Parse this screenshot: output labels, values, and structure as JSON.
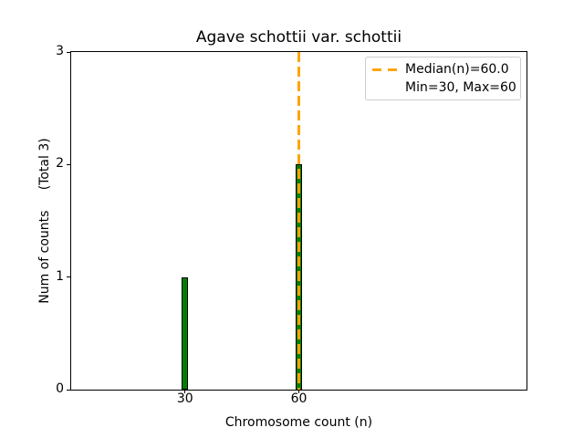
{
  "chart_data": {
    "type": "bar",
    "title": "Agave schottii var. schottii",
    "xlabel": "Chromosome count (n)",
    "ylabel": "Num of counts     (Total 3)",
    "categories": [
      30,
      60
    ],
    "values": [
      1,
      2
    ],
    "x_tick_labels": [
      "30",
      "60"
    ],
    "y_tick_values": [
      0,
      1,
      2,
      3
    ],
    "xlim": [
      0,
      120
    ],
    "ylim": [
      0,
      3
    ],
    "grid": false,
    "bar_color": "#008000",
    "bar_edge_color": "#000000",
    "median_line": {
      "x": 60,
      "value_label": "60.0",
      "color": "#FFA500",
      "style": "dashed"
    },
    "stats": {
      "median": 60.0,
      "min": 30,
      "max": 60,
      "total_counts": 3
    },
    "legend": {
      "position": "upper right",
      "entries": [
        {
          "label": "Median(n)=60.0",
          "marker": "orange-dashed-line"
        },
        {
          "label": "Min=30, Max=60",
          "marker": "none"
        }
      ]
    }
  }
}
